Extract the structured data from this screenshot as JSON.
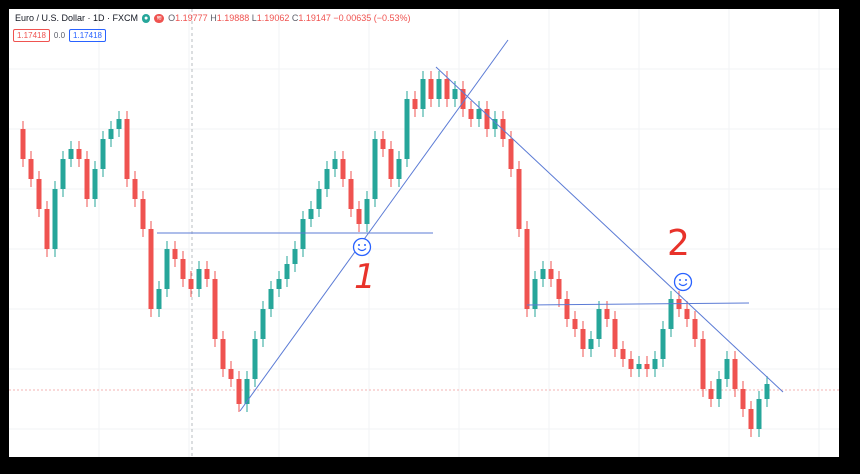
{
  "header": {
    "symbol": "Euro / U.S. Dollar · 1D · FXCM",
    "open_label": "O",
    "open_value": "1.19777",
    "high_label": "H",
    "high_value": "1.19888",
    "low_label": "L",
    "low_value": "1.19062",
    "close_label": "C",
    "close_value": "1.19147",
    "change": "−0.00635 (−0.53%)"
  },
  "prices": {
    "sell": "1.17418",
    "spread": "0.0",
    "buy": "1.17418"
  },
  "annotations": {
    "label_1": "1",
    "label_2": "2"
  },
  "colors": {
    "up": "#26a69a",
    "down": "#ef5350",
    "line": "#5b7bd5",
    "ink": "#e8322a"
  },
  "icons": [
    "smiley-icon",
    "smiley-icon"
  ]
}
